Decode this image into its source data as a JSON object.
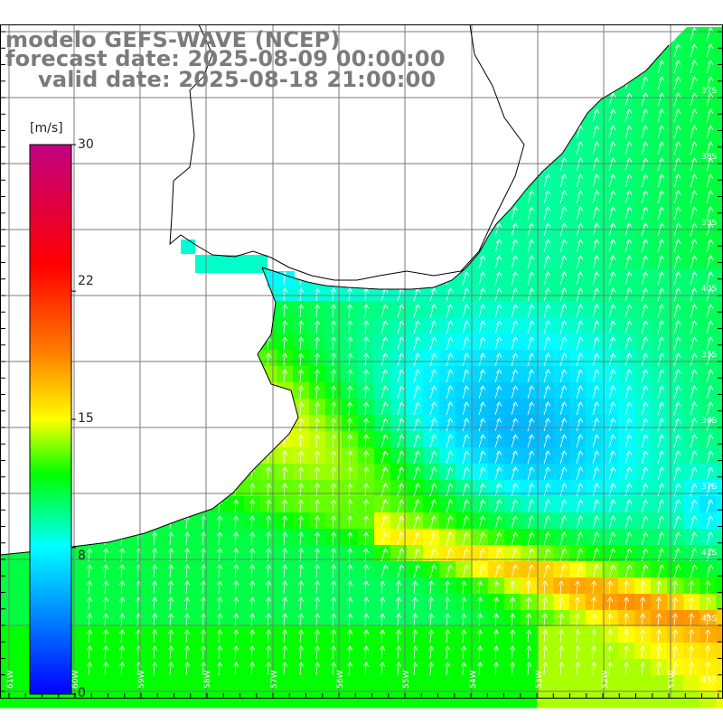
{
  "title": {
    "line1": "modelo GEFS-WAVE (NCEP)",
    "line2": "forecast date: 2025-08-09 00:00:00",
    "line3": "valid date: 2025-08-18 21:00:00"
  },
  "colorbar": {
    "unit": "[m/s]",
    "min": 0,
    "max": 30,
    "ticks": [
      {
        "value": 30,
        "label": "30"
      },
      {
        "value": 22,
        "label": "22"
      },
      {
        "value": 15,
        "label": "15"
      },
      {
        "value": 8,
        "label": "8"
      },
      {
        "value": 0,
        "label": "0"
      }
    ],
    "stops": [
      "#0000ff",
      "#00ffff",
      "#00ff00",
      "#ffff00",
      "#ff7f00",
      "#ff0000",
      "#c0007f"
    ]
  },
  "map": {
    "land_color": "#ffffff",
    "grid_color": "#7a7a7a",
    "coast_color": "#000000",
    "arrow_color": "#ffffff",
    "lat_labels": [
      "37S",
      "38S",
      "39S",
      "40S",
      "35S",
      "36S",
      "37S",
      "41S",
      "43S",
      "45S",
      "47S"
    ],
    "lon_labels": [
      "61W",
      "60W",
      "59W",
      "58W",
      "57W",
      "56W",
      "55W",
      "54W",
      "53W",
      "52W",
      "51W"
    ]
  }
}
